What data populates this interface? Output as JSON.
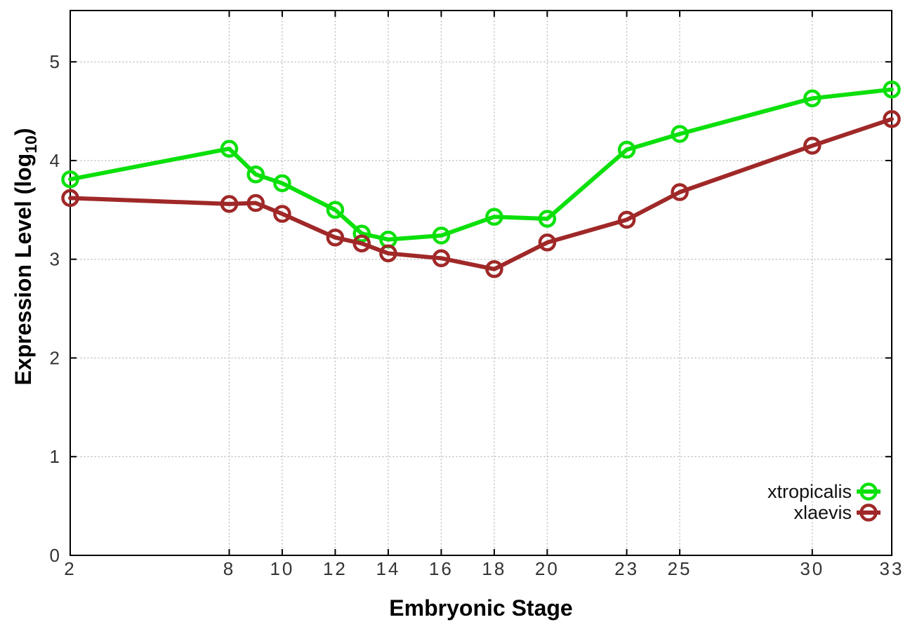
{
  "figure": {
    "background": "#ffffff",
    "colors": {
      "grid": "#c4c4c4",
      "axis": "#000000",
      "tick_text": "#333333"
    }
  },
  "chart_data": {
    "type": "line",
    "title": "",
    "xlabel": "Embryonic Stage",
    "ylabel": "Expression Level (log10)",
    "ylabel_parts": {
      "prefix": "Expression Level (log",
      "subscript": "10",
      "suffix": ")"
    },
    "x": [
      2,
      8,
      9,
      10,
      12,
      13,
      14,
      16,
      18,
      20,
      23,
      25,
      30,
      33
    ],
    "x_tick_values": [
      2,
      8,
      10,
      12,
      14,
      16,
      18,
      20,
      23,
      25,
      30,
      33
    ],
    "x_tick_labels": [
      "2",
      "8",
      "10",
      "12",
      "14",
      "16",
      "18",
      "20",
      "23",
      "25",
      "30",
      "33"
    ],
    "y_tick_values": [
      0,
      1,
      2,
      3,
      4,
      5
    ],
    "y_tick_labels": [
      "0",
      "1",
      "2",
      "3",
      "4",
      "5"
    ],
    "xlim": [
      2,
      33
    ],
    "ylim": [
      0,
      5.52
    ],
    "grid": "dotted",
    "marker": "open-circle",
    "legend": {
      "position": "inside-bottom-right",
      "entries": [
        "xtropicalis",
        "xlaevis"
      ]
    },
    "series": [
      {
        "name": "xtropicalis",
        "color": "#0ce00c",
        "marker": "open-circle",
        "values": [
          3.81,
          4.12,
          3.86,
          3.77,
          3.5,
          3.26,
          3.2,
          3.24,
          3.43,
          3.41,
          4.11,
          4.27,
          4.63,
          4.72
        ]
      },
      {
        "name": "xlaevis",
        "color": "#a02828",
        "marker": "open-circle",
        "values": [
          3.62,
          3.56,
          3.57,
          3.46,
          3.22,
          3.16,
          3.06,
          3.01,
          2.9,
          3.17,
          3.4,
          3.68,
          4.15,
          4.42
        ]
      }
    ]
  }
}
